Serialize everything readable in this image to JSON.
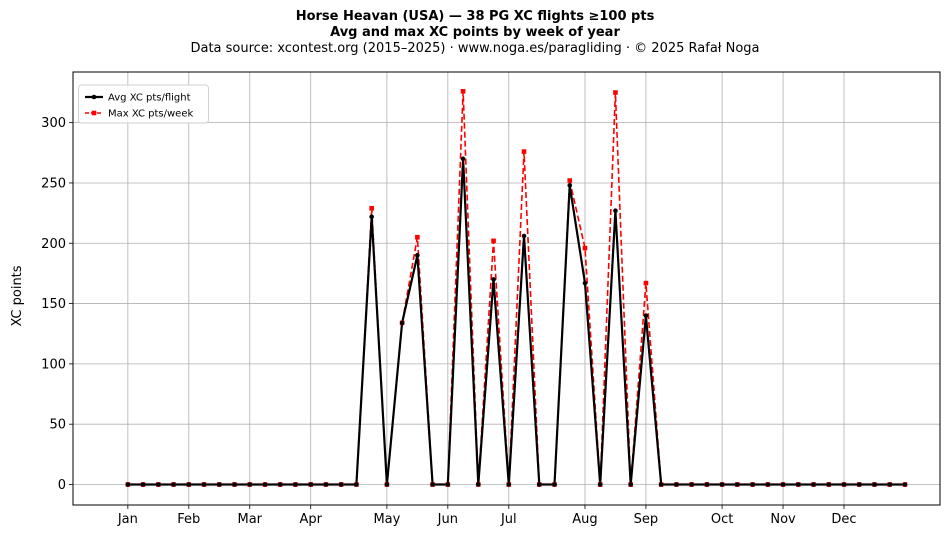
{
  "header": {
    "title": "Horse Heavan (USA)  —  38 PG XC flights ≥100 pts",
    "subtitle": "Avg and max XC points by week of year",
    "source": "Data source: xcontest.org (2015–2025)  ·  www.noga.es/paragliding  ·  © 2025 Rafał Noga"
  },
  "chart_data": {
    "type": "line",
    "title": "Horse Heavan (USA)  —  38 PG XC flights ≥100 pts",
    "subtitle": "Avg and max XC points by week of year",
    "xlabel": "",
    "ylabel": "XC points",
    "xlim": [
      -2.6,
      54.3
    ],
    "ylim": [
      -17,
      342
    ],
    "grid": true,
    "legend_position": "top-left",
    "x_ticks": [
      {
        "label": "Jan",
        "week": 1
      },
      {
        "label": "Feb",
        "week": 5
      },
      {
        "label": "Mar",
        "week": 9
      },
      {
        "label": "Apr",
        "week": 13
      },
      {
        "label": "May",
        "week": 18
      },
      {
        "label": "Jun",
        "week": 22
      },
      {
        "label": "Jul",
        "week": 26
      },
      {
        "label": "Aug",
        "week": 31
      },
      {
        "label": "Sep",
        "week": 35
      },
      {
        "label": "Oct",
        "week": 40
      },
      {
        "label": "Nov",
        "week": 44
      },
      {
        "label": "Dec",
        "week": 48
      }
    ],
    "y_ticks": [
      0,
      50,
      100,
      150,
      200,
      250,
      300
    ],
    "weeks": [
      1,
      2,
      3,
      4,
      5,
      6,
      7,
      8,
      9,
      10,
      11,
      12,
      13,
      14,
      15,
      16,
      17,
      18,
      19,
      20,
      21,
      22,
      23,
      24,
      25,
      26,
      27,
      28,
      29,
      30,
      31,
      32,
      33,
      34,
      35,
      36,
      37,
      38,
      39,
      40,
      41,
      42,
      43,
      44,
      45,
      46,
      47,
      48,
      49,
      50,
      51,
      52
    ],
    "series": [
      {
        "name": "Avg XC pts/flight",
        "color": "#000000",
        "style": "solid-circle",
        "values": [
          0,
          0,
          0,
          0,
          0,
          0,
          0,
          0,
          0,
          0,
          0,
          0,
          0,
          0,
          0,
          0,
          222,
          0,
          134,
          190,
          0,
          0,
          270,
          0,
          170,
          0,
          206,
          0,
          0,
          248,
          167,
          0,
          227,
          0,
          140,
          0,
          0,
          0,
          0,
          0,
          0,
          0,
          0,
          0,
          0,
          0,
          0,
          0,
          0,
          0,
          0,
          0
        ]
      },
      {
        "name": "Max XC pts/week",
        "color": "#ff0000",
        "style": "dashed-square",
        "values": [
          0,
          0,
          0,
          0,
          0,
          0,
          0,
          0,
          0,
          0,
          0,
          0,
          0,
          0,
          0,
          0,
          229,
          0,
          134,
          205,
          0,
          0,
          326,
          0,
          202,
          0,
          276,
          0,
          0,
          252,
          196,
          0,
          325,
          0,
          167,
          0,
          0,
          0,
          0,
          0,
          0,
          0,
          0,
          0,
          0,
          0,
          0,
          0,
          0,
          0,
          0,
          0
        ]
      }
    ]
  }
}
